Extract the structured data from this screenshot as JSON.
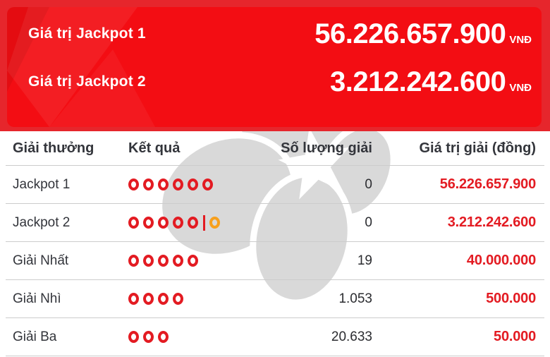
{
  "banner": {
    "rows": [
      {
        "label": "Giá trị Jackpot 1",
        "value": "56.226.657.900",
        "currency": "VNĐ"
      },
      {
        "label": "Giá trị Jackpot 2",
        "value": "3.212.242.600",
        "currency": "VNĐ"
      }
    ]
  },
  "table": {
    "headers": [
      "Giải thưởng",
      "Kết quả",
      "Số lượng giải",
      "Giá trị giải (đồng)"
    ],
    "rows": [
      {
        "prize": "Jackpot 1",
        "result": "oooooo",
        "count": "0",
        "value": "56.226.657.900"
      },
      {
        "prize": "Jackpot 2",
        "result": "ooooo|b",
        "count": "0",
        "value": "3.212.242.600"
      },
      {
        "prize": "Giải Nhất",
        "result": "ooooo",
        "count": "19",
        "value": "40.000.000"
      },
      {
        "prize": "Giải Nhì",
        "result": "oooo",
        "count": "1.053",
        "value": "500.000"
      },
      {
        "prize": "Giải Ba",
        "result": "ooo",
        "count": "20.633",
        "value": "50.000"
      }
    ]
  },
  "watermark_name": "vietlott-logo",
  "colors": {
    "accent": "#e31b22",
    "bonus": "#f7a01d",
    "watermark": "#d9d9d9",
    "banner_outer": "#e6262c",
    "banner_inner": "#f30d13",
    "header_text": "#33353b",
    "body_text": "#2b2c30",
    "line": "#cccccc"
  }
}
